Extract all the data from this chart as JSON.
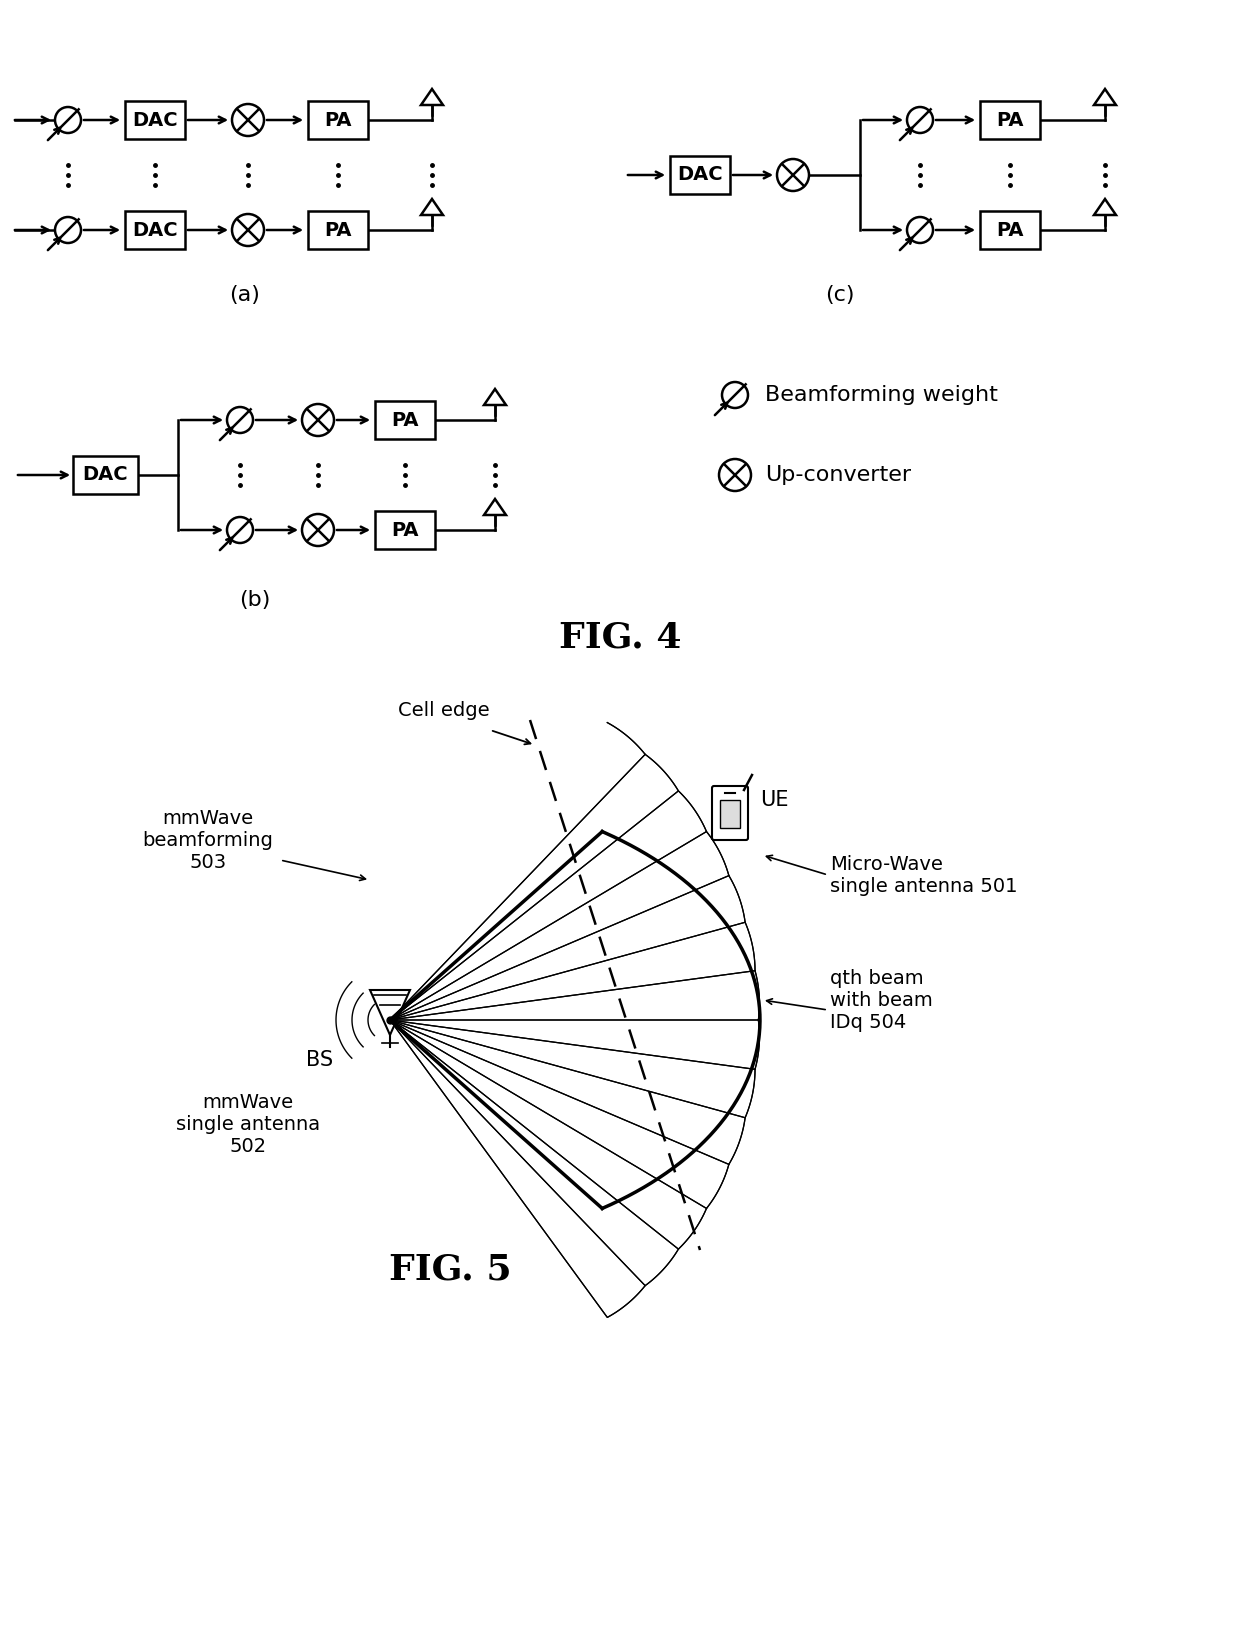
{
  "background_color": "#ffffff",
  "fig4_title": "FIG. 4",
  "fig5_title": "FIG. 5",
  "legend_beamforming": "Beamforming weight",
  "legend_upconverter": "Up-converter",
  "label_a": "(a)",
  "label_b": "(b)",
  "label_c": "(c)",
  "label_BS": "BS",
  "label_UE": "UE",
  "label_cell_edge": "Cell edge",
  "label_mmwave_bf": "mmWave\nbeamforming\n503",
  "label_micro_wave": "Micro-Wave\nsingle antenna 501",
  "label_mmwave_single": "mmWave\nsingle antenna\n502",
  "label_qth_beam": "qth beam\nwith beam\nIDq 504"
}
